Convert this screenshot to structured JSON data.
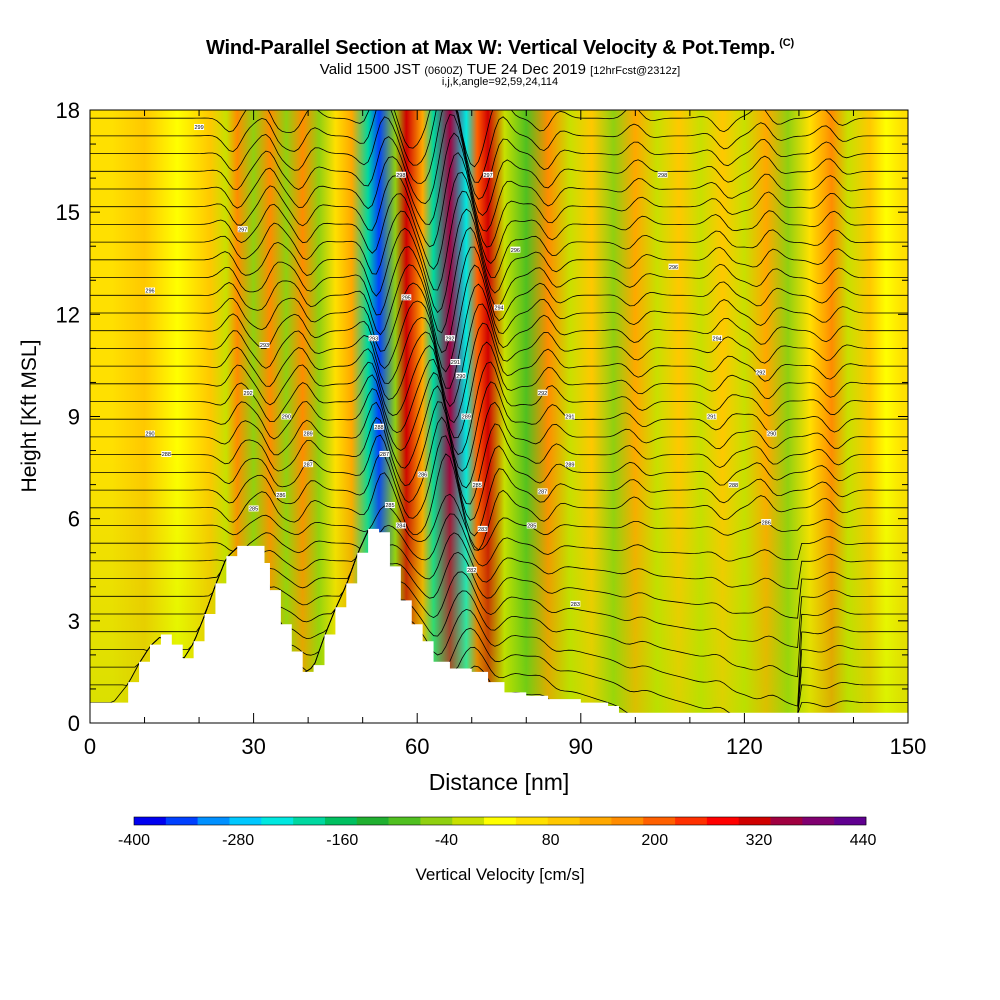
{
  "header": {
    "title": "Wind-Parallel Section at Max W: Vertical Velocity & Pot.Temp.",
    "copyright": "(C)",
    "valid_prefix": "Valid 1500 JST",
    "valid_zulu": "(0600Z)",
    "valid_date": "TUE 24 Dec 2019",
    "forecast": "[12hrFcst@2312z]",
    "section_params": "i,j,k,angle=92,59,24,114"
  },
  "chart_data": {
    "type": "heatmap",
    "xlabel": "Distance [nm]",
    "ylabel": "Height [Kft MSL]",
    "xlim": [
      0,
      150
    ],
    "ylim": [
      0,
      18
    ],
    "x_ticks": [
      0,
      30,
      60,
      90,
      120,
      150
    ],
    "y_ticks": [
      0,
      3,
      6,
      9,
      12,
      15,
      18
    ],
    "colorbar": {
      "label": "Vertical Velocity [cm/s]",
      "tick_labels": [
        "-400",
        "-280",
        "-160",
        "-40",
        "80",
        "200",
        "320",
        "440"
      ],
      "colors": [
        "#0000f0",
        "#0040ff",
        "#0090ff",
        "#00c8ff",
        "#00e8e0",
        "#00d8a0",
        "#00c060",
        "#20b030",
        "#50c020",
        "#90d010",
        "#c8e000",
        "#ffff00",
        "#ffe000",
        "#ffc800",
        "#ffa800",
        "#ff8c00",
        "#ff6000",
        "#ff3000",
        "#ff0000",
        "#d00000",
        "#a00040",
        "#800070",
        "#600090"
      ]
    },
    "velocity_bands": [
      {
        "x": 4,
        "v": 40
      },
      {
        "x": 10,
        "v": 80
      },
      {
        "x": 16,
        "v": -10
      },
      {
        "x": 22,
        "v": 60
      },
      {
        "x": 25,
        "v": -60
      },
      {
        "x": 27,
        "v": 140
      },
      {
        "x": 30,
        "v": -80
      },
      {
        "x": 33,
        "v": 150
      },
      {
        "x": 36,
        "v": -90
      },
      {
        "x": 39,
        "v": 140
      },
      {
        "x": 42,
        "v": -80
      },
      {
        "x": 45,
        "v": 40
      },
      {
        "x": 48,
        "v": 120
      },
      {
        "x": 51,
        "v": -250
      },
      {
        "x": 53,
        "v": -390
      },
      {
        "x": 56,
        "v": -100
      },
      {
        "x": 58,
        "v": 330
      },
      {
        "x": 61,
        "v": 120
      },
      {
        "x": 63,
        "v": -230
      },
      {
        "x": 66,
        "v": 340
      },
      {
        "x": 69,
        "v": -300
      },
      {
        "x": 71,
        "v": 200
      },
      {
        "x": 73,
        "v": 310
      },
      {
        "x": 76,
        "v": -60
      },
      {
        "x": 80,
        "v": -110
      },
      {
        "x": 84,
        "v": 140
      },
      {
        "x": 88,
        "v": -50
      },
      {
        "x": 92,
        "v": 80
      },
      {
        "x": 96,
        "v": -70
      },
      {
        "x": 100,
        "v": 120
      },
      {
        "x": 104,
        "v": -40
      },
      {
        "x": 108,
        "v": 60
      },
      {
        "x": 112,
        "v": -40
      },
      {
        "x": 116,
        "v": 80
      },
      {
        "x": 120,
        "v": -60
      },
      {
        "x": 124,
        "v": 100
      },
      {
        "x": 128,
        "v": -70
      },
      {
        "x": 132,
        "v": 40
      },
      {
        "x": 136,
        "v": 150
      },
      {
        "x": 139,
        "v": -50
      },
      {
        "x": 143,
        "v": 60
      },
      {
        "x": 146,
        "v": -20
      },
      {
        "x": 149,
        "v": 30
      }
    ],
    "terrain": [
      {
        "x": 0,
        "h": 0.6
      },
      {
        "x": 4,
        "h": 0.6
      },
      {
        "x": 7,
        "h": 1.2
      },
      {
        "x": 9,
        "h": 1.8
      },
      {
        "x": 11,
        "h": 2.3
      },
      {
        "x": 13,
        "h": 2.6
      },
      {
        "x": 15,
        "h": 2.3
      },
      {
        "x": 17,
        "h": 1.9
      },
      {
        "x": 19,
        "h": 2.4
      },
      {
        "x": 21,
        "h": 3.2
      },
      {
        "x": 23,
        "h": 4.1
      },
      {
        "x": 25,
        "h": 4.9
      },
      {
        "x": 27,
        "h": 5.2
      },
      {
        "x": 30,
        "h": 5.2
      },
      {
        "x": 32,
        "h": 4.7
      },
      {
        "x": 33,
        "h": 3.9
      },
      {
        "x": 35,
        "h": 2.9
      },
      {
        "x": 37,
        "h": 2.1
      },
      {
        "x": 39,
        "h": 1.5
      },
      {
        "x": 41,
        "h": 1.7
      },
      {
        "x": 43,
        "h": 2.6
      },
      {
        "x": 45,
        "h": 3.4
      },
      {
        "x": 47,
        "h": 4.1
      },
      {
        "x": 49,
        "h": 5.0
      },
      {
        "x": 51,
        "h": 5.7
      },
      {
        "x": 53,
        "h": 5.6
      },
      {
        "x": 55,
        "h": 4.6
      },
      {
        "x": 57,
        "h": 3.6
      },
      {
        "x": 59,
        "h": 2.9
      },
      {
        "x": 61,
        "h": 2.4
      },
      {
        "x": 63,
        "h": 1.8
      },
      {
        "x": 66,
        "h": 1.6
      },
      {
        "x": 70,
        "h": 1.5
      },
      {
        "x": 73,
        "h": 1.2
      },
      {
        "x": 76,
        "h": 0.9
      },
      {
        "x": 80,
        "h": 0.8
      },
      {
        "x": 84,
        "h": 0.7
      },
      {
        "x": 90,
        "h": 0.6
      },
      {
        "x": 95,
        "h": 0.5
      },
      {
        "x": 97,
        "h": 0.3
      },
      {
        "x": 150,
        "h": 0.3
      }
    ],
    "isentrope_labels": [
      {
        "x": 20,
        "y": 17.5,
        "text": "299"
      },
      {
        "x": 57,
        "y": 16.1,
        "text": "298"
      },
      {
        "x": 73,
        "y": 16.1,
        "text": "297"
      },
      {
        "x": 105,
        "y": 16.1,
        "text": "298"
      },
      {
        "x": 28,
        "y": 14.5,
        "text": "297"
      },
      {
        "x": 78,
        "y": 13.9,
        "text": "296"
      },
      {
        "x": 107,
        "y": 13.4,
        "text": "296"
      },
      {
        "x": 11,
        "y": 12.7,
        "text": "296"
      },
      {
        "x": 58,
        "y": 12.5,
        "text": "295"
      },
      {
        "x": 75,
        "y": 12.2,
        "text": "294"
      },
      {
        "x": 52,
        "y": 11.3,
        "text": "293"
      },
      {
        "x": 66,
        "y": 11.3,
        "text": "292"
      },
      {
        "x": 115,
        "y": 11.3,
        "text": "294"
      },
      {
        "x": 67,
        "y": 10.6,
        "text": "291"
      },
      {
        "x": 32,
        "y": 11.1,
        "text": "293"
      },
      {
        "x": 68,
        "y": 10.2,
        "text": "290"
      },
      {
        "x": 123,
        "y": 10.3,
        "text": "292"
      },
      {
        "x": 83,
        "y": 9.7,
        "text": "292"
      },
      {
        "x": 29,
        "y": 9.7,
        "text": "292"
      },
      {
        "x": 69,
        "y": 9.0,
        "text": "289"
      },
      {
        "x": 88,
        "y": 9.0,
        "text": "291"
      },
      {
        "x": 114,
        "y": 9.0,
        "text": "291"
      },
      {
        "x": 11,
        "y": 8.5,
        "text": "290"
      },
      {
        "x": 36,
        "y": 9.0,
        "text": "290"
      },
      {
        "x": 40,
        "y": 8.5,
        "text": "289"
      },
      {
        "x": 53,
        "y": 8.7,
        "text": "288"
      },
      {
        "x": 125,
        "y": 8.5,
        "text": "290"
      },
      {
        "x": 14,
        "y": 7.9,
        "text": "288"
      },
      {
        "x": 40,
        "y": 7.6,
        "text": "287"
      },
      {
        "x": 54,
        "y": 7.9,
        "text": "287"
      },
      {
        "x": 88,
        "y": 7.6,
        "text": "289"
      },
      {
        "x": 61,
        "y": 7.3,
        "text": "286"
      },
      {
        "x": 71,
        "y": 7.0,
        "text": "285"
      },
      {
        "x": 118,
        "y": 7.0,
        "text": "288"
      },
      {
        "x": 35,
        "y": 6.7,
        "text": "286"
      },
      {
        "x": 83,
        "y": 6.8,
        "text": "287"
      },
      {
        "x": 55,
        "y": 6.4,
        "text": "285"
      },
      {
        "x": 30,
        "y": 6.3,
        "text": "285"
      },
      {
        "x": 57,
        "y": 5.8,
        "text": "284"
      },
      {
        "x": 72,
        "y": 5.7,
        "text": "283"
      },
      {
        "x": 81,
        "y": 5.8,
        "text": "285"
      },
      {
        "x": 124,
        "y": 5.9,
        "text": "286"
      },
      {
        "x": 70,
        "y": 4.5,
        "text": "282"
      },
      {
        "x": 89,
        "y": 3.5,
        "text": "283"
      }
    ]
  }
}
